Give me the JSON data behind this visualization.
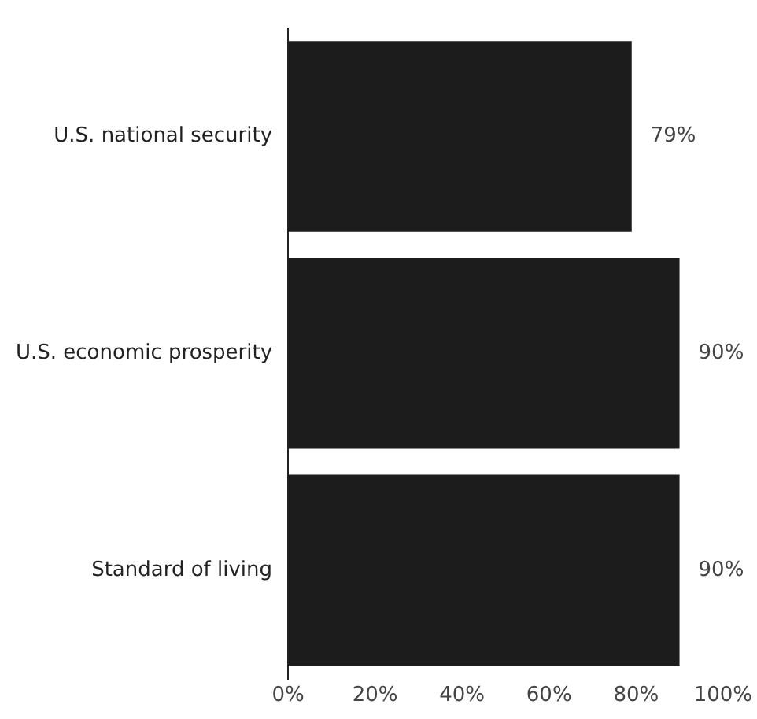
{
  "chart_data": {
    "type": "bar",
    "orientation": "horizontal",
    "categories": [
      "U.S. national security",
      "U.S. economic prosperity",
      "Standard of living"
    ],
    "values": [
      79,
      90,
      90
    ],
    "color": "#1c1c1c",
    "value_labels": [
      "79%",
      "90%",
      "90%"
    ],
    "xlim": [
      0,
      100
    ],
    "xticks": [
      {
        "value": 0,
        "label": "0%"
      },
      {
        "value": 20,
        "label": "20%"
      },
      {
        "value": 40,
        "label": "40%"
      },
      {
        "value": 60,
        "label": "60%"
      },
      {
        "value": 80,
        "label": "80%"
      },
      {
        "value": 100,
        "label": "100%"
      }
    ],
    "grid": false,
    "legend": false
  }
}
